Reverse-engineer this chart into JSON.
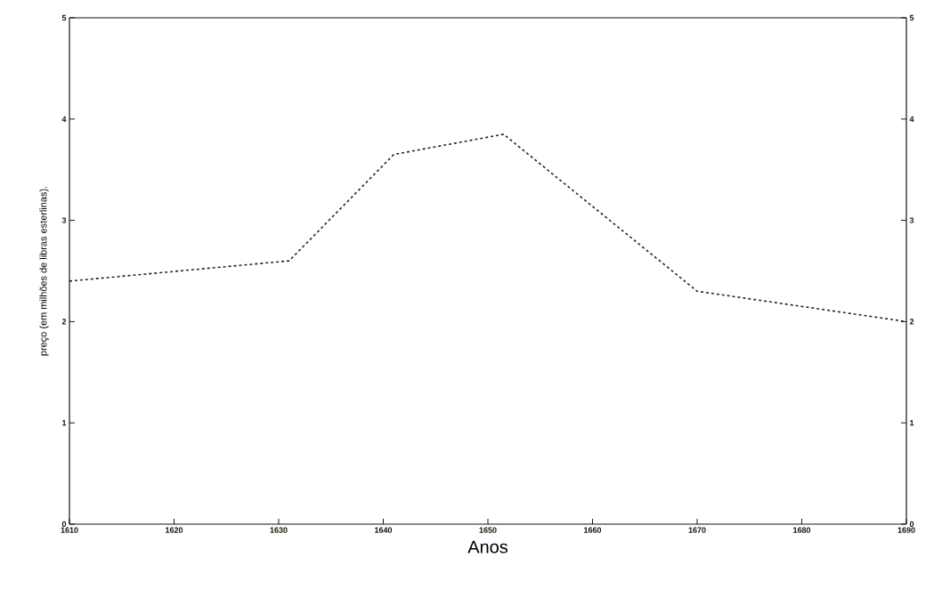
{
  "chart_data": {
    "type": "line",
    "xlabel": "Anos",
    "ylabel": "preço (em milhões de libras esterlinas).",
    "x": [
      1610,
      1631,
      1641,
      1651.5,
      1670,
      1690
    ],
    "series": [
      {
        "color": "#2b2418",
        "values": [
          2.4,
          2.6,
          3.65,
          3.85,
          2.3,
          2.0
        ]
      }
    ],
    "line_style": "dashed",
    "marker": "none",
    "grid": false,
    "xlim": [
      1610,
      1690
    ],
    "xticks": [
      1610,
      1620,
      1630,
      1640,
      1650,
      1660,
      1670,
      1680,
      1690
    ],
    "ylim": [
      0,
      5
    ],
    "yticks": [
      0,
      1,
      2,
      3,
      4,
      5
    ],
    "y2lim": [
      0,
      5
    ],
    "y2ticks": [
      0,
      1,
      2,
      3,
      4,
      5
    ]
  }
}
